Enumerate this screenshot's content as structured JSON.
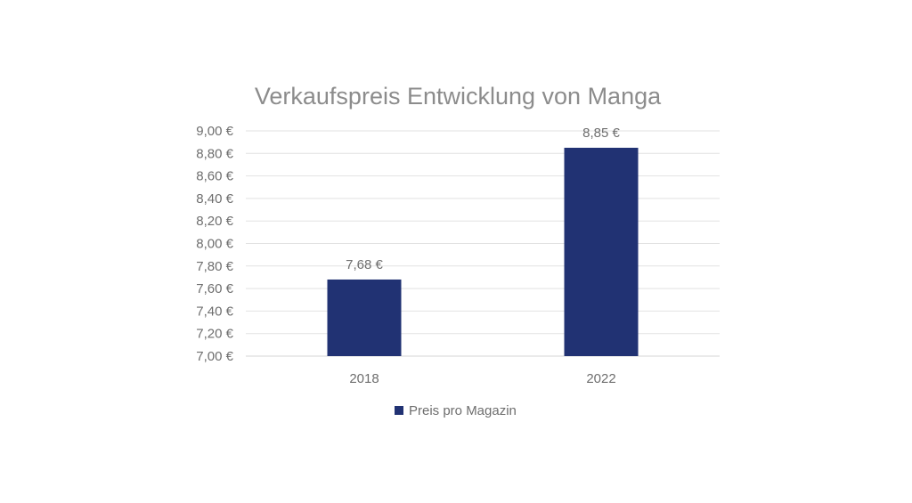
{
  "chart_data": {
    "type": "bar",
    "title": "Verkaufspreis Entwicklung von Manga",
    "categories": [
      "2018",
      "2022"
    ],
    "series": [
      {
        "name": "Preis pro Magazin",
        "values": [
          7.68,
          8.85
        ],
        "data_labels": [
          "7,68 €",
          "8,85 €"
        ],
        "color": "#213273"
      }
    ],
    "ylim": [
      7.0,
      9.0
    ],
    "y_ticks": [
      7.0,
      7.2,
      7.4,
      7.6,
      7.8,
      8.0,
      8.2,
      8.4,
      8.6,
      8.8,
      9.0
    ],
    "y_tick_labels": [
      "7,00 €",
      "7,20 €",
      "7,40 €",
      "7,60 €",
      "7,80 €",
      "8,00 €",
      "8,20 €",
      "8,40 €",
      "8,60 €",
      "8,80 €",
      "9,00 €"
    ],
    "grid": true,
    "legend_position": "bottom"
  }
}
